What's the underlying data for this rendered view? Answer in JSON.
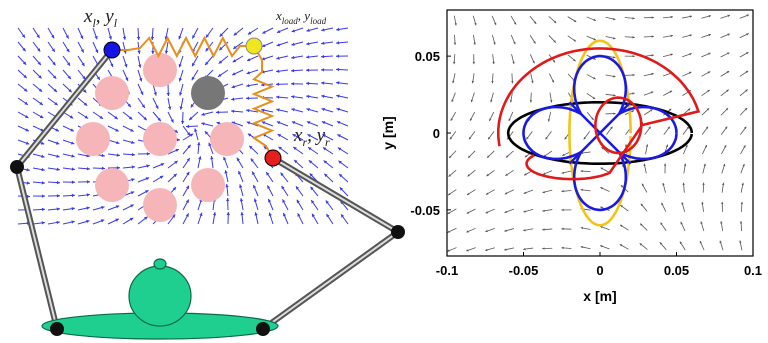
{
  "left_panel": {
    "left_hand_label": {
      "var": "x",
      "sub": "l",
      "var2": "y",
      "sub2": "l"
    },
    "load_label": {
      "var": "x",
      "sub": "load",
      "var2": "y",
      "sub2": "load"
    },
    "right_hand_label": {
      "var": "x",
      "sub": "r",
      "var2": "y",
      "sub2": "r"
    },
    "colors": {
      "left_hand": "#1414e6",
      "load": "#f0e61e",
      "right_hand": "#e61e1e",
      "spring": "#e8901e",
      "target": "#f6b5b8",
      "active_target": "#777777",
      "body": "#1fcf8f",
      "joint": "#111111",
      "field_arrow": "#3a3ae6"
    }
  },
  "chart_data": {
    "type": "line",
    "xlabel": "x [m]",
    "ylabel": "y [m]",
    "xlim": [
      -0.1,
      0.1
    ],
    "ylim": [
      -0.08,
      0.08
    ],
    "xticks": [
      "-0.1",
      "-0.05",
      "0",
      "0.05",
      "0.1"
    ],
    "yticks": [
      "0.05",
      "0",
      "-0.05"
    ],
    "series": [
      {
        "color": "#000000",
        "shape": "ellipse",
        "center": [
          0,
          0
        ],
        "radii": [
          0.06,
          0.02
        ]
      },
      {
        "color": "#f2c418",
        "shape": "ellipse",
        "center": [
          0,
          0
        ],
        "radii": [
          0.02,
          0.06
        ]
      },
      {
        "color": "#1a1ae0",
        "shape": "four-lobe",
        "center": [
          0,
          0
        ],
        "extent": 0.05
      },
      {
        "color": "#e01a1a",
        "shape": "arc",
        "center": [
          0,
          0
        ],
        "extent": 0.07
      }
    ]
  }
}
